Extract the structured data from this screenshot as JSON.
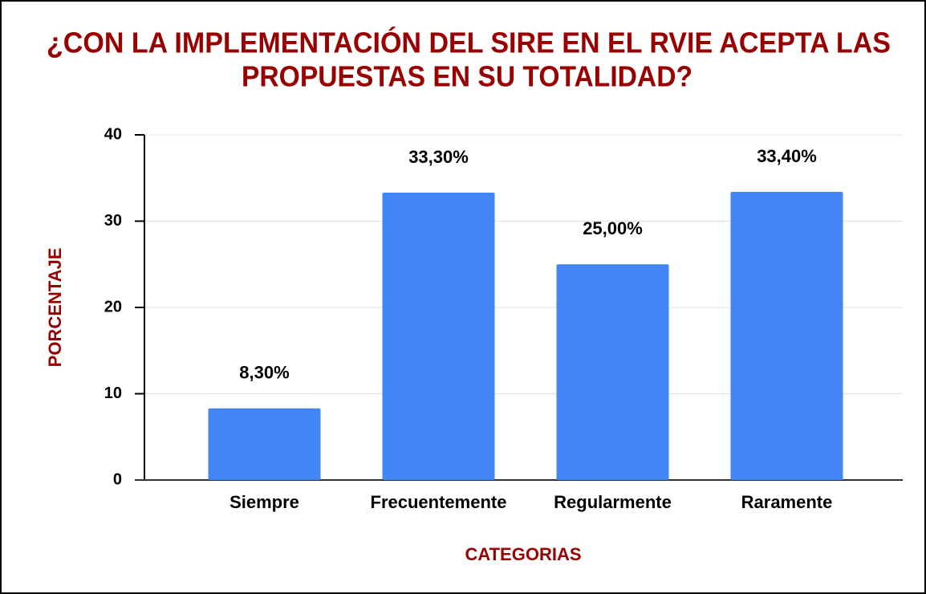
{
  "chart_data": {
    "type": "bar",
    "title": [
      "¿CON LA IMPLEMENTACIÓN DEL SIRE EN EL RVIE ACEPTA LAS",
      "PROPUESTAS EN SU TOTALIDAD?"
    ],
    "x_label": "CATEGORIAS",
    "y_label": "PORCENTAJE",
    "categories": [
      "Siempre",
      "Frecuentemente",
      "Regularmente",
      "Raramente"
    ],
    "values": [
      8.3,
      33.3,
      25,
      33.4
    ],
    "value_labels": [
      "8,30%",
      "33,30%",
      "25,00%",
      "33,40%"
    ],
    "color": "#4285f4",
    "ylim": [
      0,
      40
    ],
    "yticks": [
      0,
      10,
      20,
      30,
      40
    ],
    "grid": true
  }
}
